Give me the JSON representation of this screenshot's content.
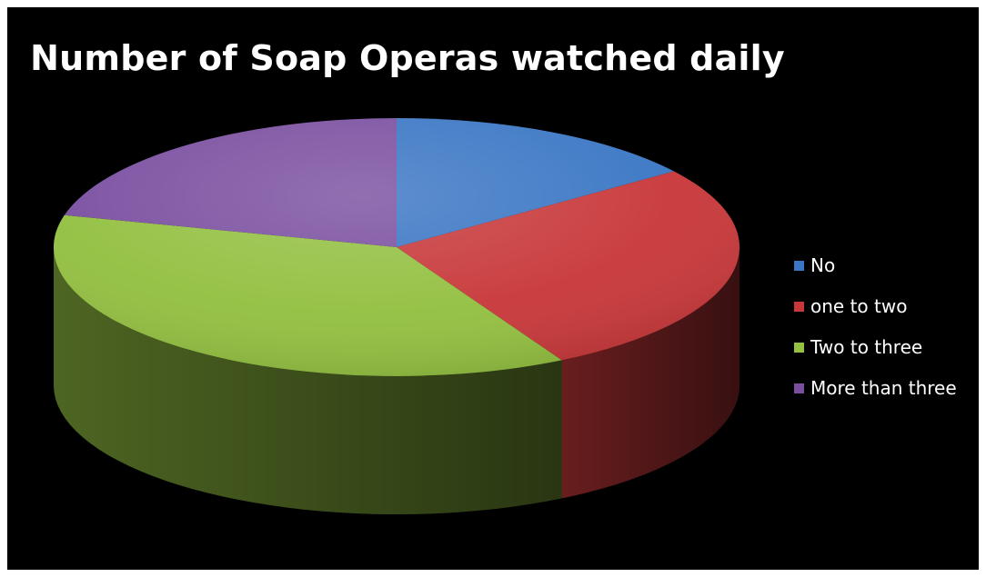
{
  "chart_data": {
    "type": "pie",
    "style": "3d",
    "title": "Number of Soap Operas watched daily",
    "legend_position": "right",
    "slices": [
      {
        "label": "No",
        "value": 15,
        "color": "#3a76c4"
      },
      {
        "label": "one to two",
        "value": 27,
        "color": "#c8383a"
      },
      {
        "label": "Two to three",
        "value": 37,
        "color": "#93c041"
      },
      {
        "label": "More than three",
        "value": 21,
        "color": "#7a4fa0"
      }
    ]
  }
}
